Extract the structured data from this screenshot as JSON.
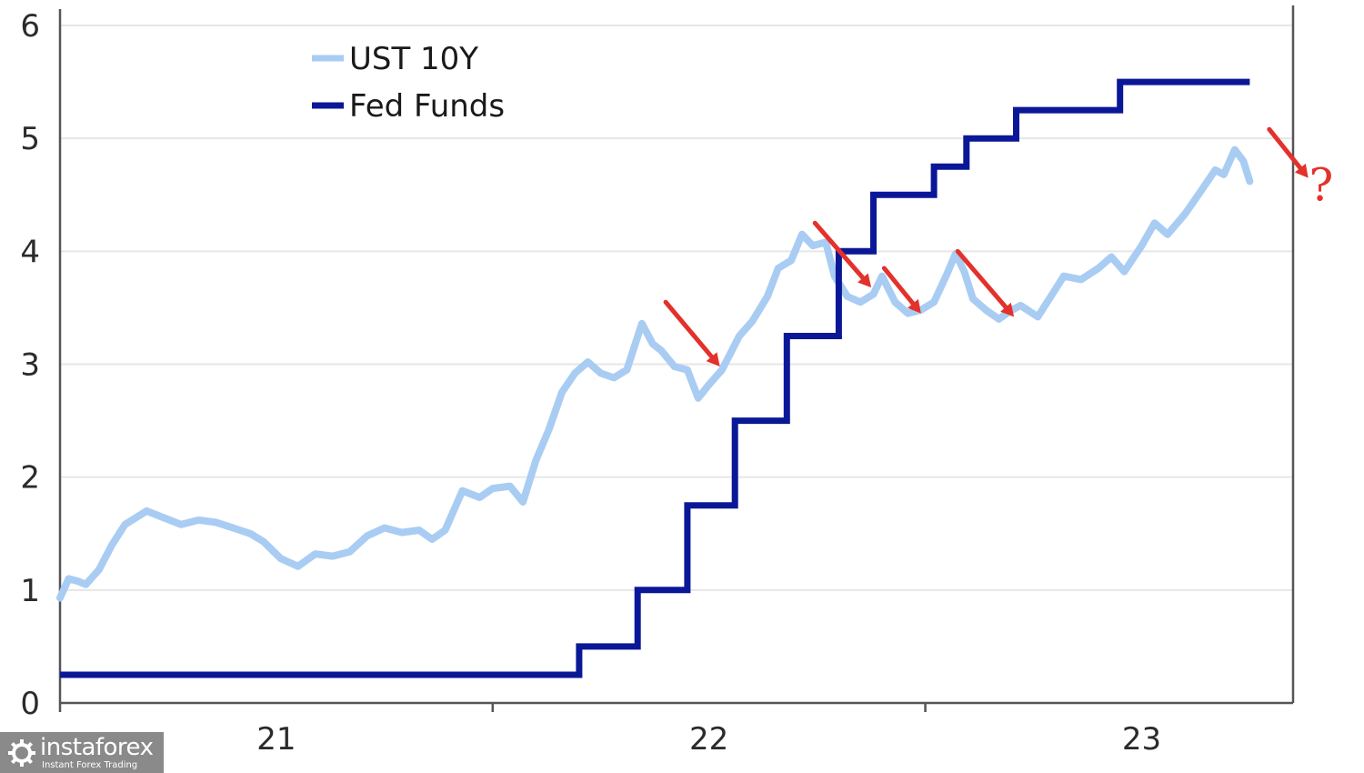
{
  "colors": {
    "ust": "#a9ccf3",
    "fed": "#0a1897",
    "annotation": "#e3312b",
    "grid": "#e6e6e6",
    "axis": "#555555"
  },
  "watermark": {
    "main": "instaforex",
    "sub": "Instant Forex Trading"
  },
  "chart_data": {
    "type": "line",
    "title": "",
    "xlabel": "",
    "ylabel": "",
    "xlim": [
      2021.0,
      2023.85
    ],
    "ylim": [
      0,
      6
    ],
    "y_ticks": [
      0,
      1,
      2,
      3,
      4,
      5,
      6
    ],
    "x_tick_labels": [
      {
        "label": "21",
        "x": 2021.5
      },
      {
        "label": "22",
        "x": 2022.5
      },
      {
        "label": "23",
        "x": 2023.5
      }
    ],
    "x_tick_marks": [
      2021.0,
      2022.0,
      2023.0
    ],
    "grid": "horizontal",
    "legend": {
      "position": "top-left"
    },
    "series": [
      {
        "name": "UST 10Y",
        "style": "line",
        "color": "#a9ccf3",
        "points": [
          [
            2021.0,
            0.93
          ],
          [
            2021.02,
            1.1
          ],
          [
            2021.04,
            1.08
          ],
          [
            2021.06,
            1.05
          ],
          [
            2021.09,
            1.18
          ],
          [
            2021.12,
            1.4
          ],
          [
            2021.15,
            1.58
          ],
          [
            2021.2,
            1.7
          ],
          [
            2021.24,
            1.64
          ],
          [
            2021.28,
            1.58
          ],
          [
            2021.32,
            1.62
          ],
          [
            2021.36,
            1.6
          ],
          [
            2021.4,
            1.55
          ],
          [
            2021.44,
            1.5
          ],
          [
            2021.47,
            1.43
          ],
          [
            2021.51,
            1.28
          ],
          [
            2021.55,
            1.21
          ],
          [
            2021.59,
            1.32
          ],
          [
            2021.63,
            1.3
          ],
          [
            2021.67,
            1.34
          ],
          [
            2021.71,
            1.48
          ],
          [
            2021.75,
            1.55
          ],
          [
            2021.79,
            1.51
          ],
          [
            2021.83,
            1.53
          ],
          [
            2021.86,
            1.45
          ],
          [
            2021.89,
            1.53
          ],
          [
            2021.93,
            1.88
          ],
          [
            2021.97,
            1.82
          ],
          [
            2022.0,
            1.9
          ],
          [
            2022.04,
            1.92
          ],
          [
            2022.07,
            1.78
          ],
          [
            2022.1,
            2.15
          ],
          [
            2022.13,
            2.42
          ],
          [
            2022.16,
            2.75
          ],
          [
            2022.19,
            2.92
          ],
          [
            2022.22,
            3.02
          ],
          [
            2022.25,
            2.92
          ],
          [
            2022.28,
            2.88
          ],
          [
            2022.31,
            2.95
          ],
          [
            2022.345,
            3.36
          ],
          [
            2022.37,
            3.18
          ],
          [
            2022.39,
            3.12
          ],
          [
            2022.42,
            2.98
          ],
          [
            2022.45,
            2.95
          ],
          [
            2022.475,
            2.7
          ],
          [
            2022.5,
            2.82
          ],
          [
            2022.53,
            2.95
          ],
          [
            2022.57,
            3.25
          ],
          [
            2022.6,
            3.38
          ],
          [
            2022.635,
            3.6
          ],
          [
            2022.66,
            3.85
          ],
          [
            2022.69,
            3.92
          ],
          [
            2022.715,
            4.15
          ],
          [
            2022.74,
            4.05
          ],
          [
            2022.77,
            4.08
          ],
          [
            2022.79,
            3.78
          ],
          [
            2022.82,
            3.6
          ],
          [
            2022.85,
            3.55
          ],
          [
            2022.88,
            3.62
          ],
          [
            2022.9,
            3.78
          ],
          [
            2022.93,
            3.55
          ],
          [
            2022.96,
            3.45
          ],
          [
            2022.99,
            3.48
          ],
          [
            2023.02,
            3.55
          ],
          [
            2023.05,
            3.8
          ],
          [
            2023.07,
            3.98
          ],
          [
            2023.09,
            3.82
          ],
          [
            2023.11,
            3.58
          ],
          [
            2023.14,
            3.48
          ],
          [
            2023.17,
            3.4
          ],
          [
            2023.2,
            3.48
          ],
          [
            2023.22,
            3.52
          ],
          [
            2023.26,
            3.42
          ],
          [
            2023.29,
            3.6
          ],
          [
            2023.32,
            3.78
          ],
          [
            2023.36,
            3.75
          ],
          [
            2023.4,
            3.85
          ],
          [
            2023.43,
            3.95
          ],
          [
            2023.46,
            3.82
          ],
          [
            2023.5,
            4.05
          ],
          [
            2023.53,
            4.25
          ],
          [
            2023.56,
            4.15
          ],
          [
            2023.6,
            4.33
          ],
          [
            2023.64,
            4.55
          ],
          [
            2023.67,
            4.72
          ],
          [
            2023.69,
            4.68
          ],
          [
            2023.715,
            4.9
          ],
          [
            2023.735,
            4.8
          ],
          [
            2023.75,
            4.62
          ]
        ]
      },
      {
        "name": "Fed Funds",
        "style": "step",
        "color": "#0a1897",
        "steps": [
          [
            2021.0,
            0.25
          ],
          [
            2022.2,
            0.5
          ],
          [
            2022.335,
            1.0
          ],
          [
            2022.45,
            1.75
          ],
          [
            2022.56,
            2.5
          ],
          [
            2022.68,
            3.25
          ],
          [
            2022.8,
            4.0
          ],
          [
            2022.88,
            4.5
          ],
          [
            2023.02,
            4.75
          ],
          [
            2023.095,
            5.0
          ],
          [
            2023.21,
            5.25
          ],
          [
            2023.45,
            5.5
          ],
          [
            2023.75,
            5.5
          ]
        ]
      }
    ],
    "annotations": [
      {
        "type": "arrow",
        "from": [
          2022.4,
          3.55
        ],
        "to": [
          2022.525,
          2.98
        ]
      },
      {
        "type": "arrow",
        "from": [
          2022.745,
          4.25
        ],
        "to": [
          2022.875,
          3.68
        ]
      },
      {
        "type": "arrow",
        "from": [
          2022.905,
          3.85
        ],
        "to": [
          2022.99,
          3.45
        ]
      },
      {
        "type": "arrow",
        "from": [
          2023.075,
          4.0
        ],
        "to": [
          2023.205,
          3.42
        ]
      },
      {
        "type": "arrow",
        "from": [
          2023.795,
          5.08
        ],
        "to": [
          2023.885,
          4.65
        ]
      },
      {
        "type": "text",
        "text": "?",
        "at": [
          2023.915,
          4.45
        ]
      }
    ]
  }
}
